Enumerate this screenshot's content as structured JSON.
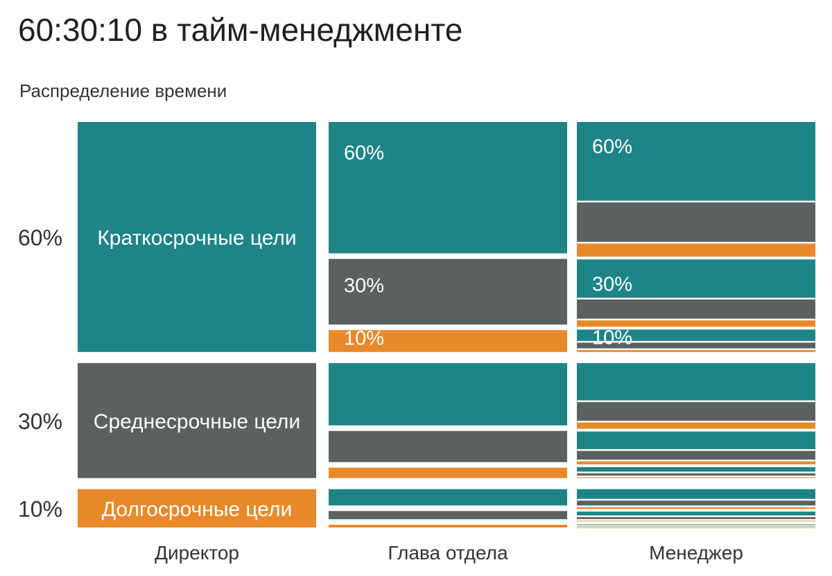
{
  "title": "60:30:10 в тайм-менеджменте",
  "subtitle": "Распределение времени",
  "colors": {
    "short": "#1e8488",
    "mid": "#5b6061",
    "long": "#e8892a"
  },
  "chart_data": {
    "type": "mosaic",
    "shares": [
      0.6,
      0.3,
      0.1
    ],
    "y_tick_labels": [
      "60%",
      "30%",
      "10%"
    ],
    "categories": [
      "Директор",
      "Глава отдела",
      "Менеджер"
    ],
    "block_labels": [
      "Краткосрочные цели",
      "Среднесрочные цели",
      "Долгосрочные цели"
    ],
    "subdivision_levels": [
      0,
      1,
      2
    ],
    "segment_labels": [
      "60%",
      "30%",
      "10%"
    ]
  }
}
